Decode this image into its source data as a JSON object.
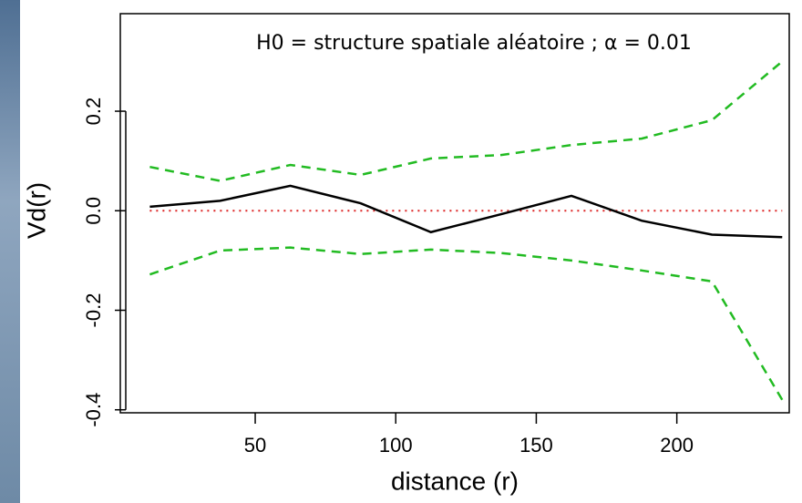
{
  "chart_data": {
    "type": "line",
    "annotation": "H0 = structure spatiale aléatoire ; α = 0.01",
    "x_label": "distance (r)",
    "y_label": "Vd(r)",
    "x": [
      12.5,
      37.5,
      62.5,
      87.5,
      112.5,
      137.5,
      162.5,
      187.5,
      212.5,
      237.5
    ],
    "series": [
      {
        "color": "#000000",
        "dash": "solid",
        "values": [
          0.008,
          0.02,
          0.05,
          0.015,
          -0.043,
          -0.007,
          0.03,
          -0.02,
          -0.048,
          -0.053
        ]
      },
      {
        "color": "#22bb22",
        "dash": "dashed",
        "values": [
          0.088,
          0.06,
          0.092,
          0.072,
          0.105,
          0.112,
          0.132,
          0.145,
          0.182,
          0.3
        ]
      },
      {
        "color": "#22bb22",
        "dash": "dashed",
        "values": [
          -0.128,
          -0.08,
          -0.074,
          -0.087,
          -0.078,
          -0.085,
          -0.1,
          -0.12,
          -0.142,
          -0.38
        ]
      }
    ],
    "reference_line": {
      "value": 0,
      "color": "#dd2222",
      "dash": "dotted"
    },
    "xlim": [
      2,
      240
    ],
    "ylim": [
      -0.406,
      0.396
    ],
    "xticks": [
      50,
      100,
      150,
      200
    ],
    "yticks": [
      {
        "value": -0.4,
        "label": "-0.4"
      },
      {
        "value": -0.2,
        "label": "-0.2"
      },
      {
        "value": 0,
        "label": "0.0"
      },
      0.2
    ]
  }
}
